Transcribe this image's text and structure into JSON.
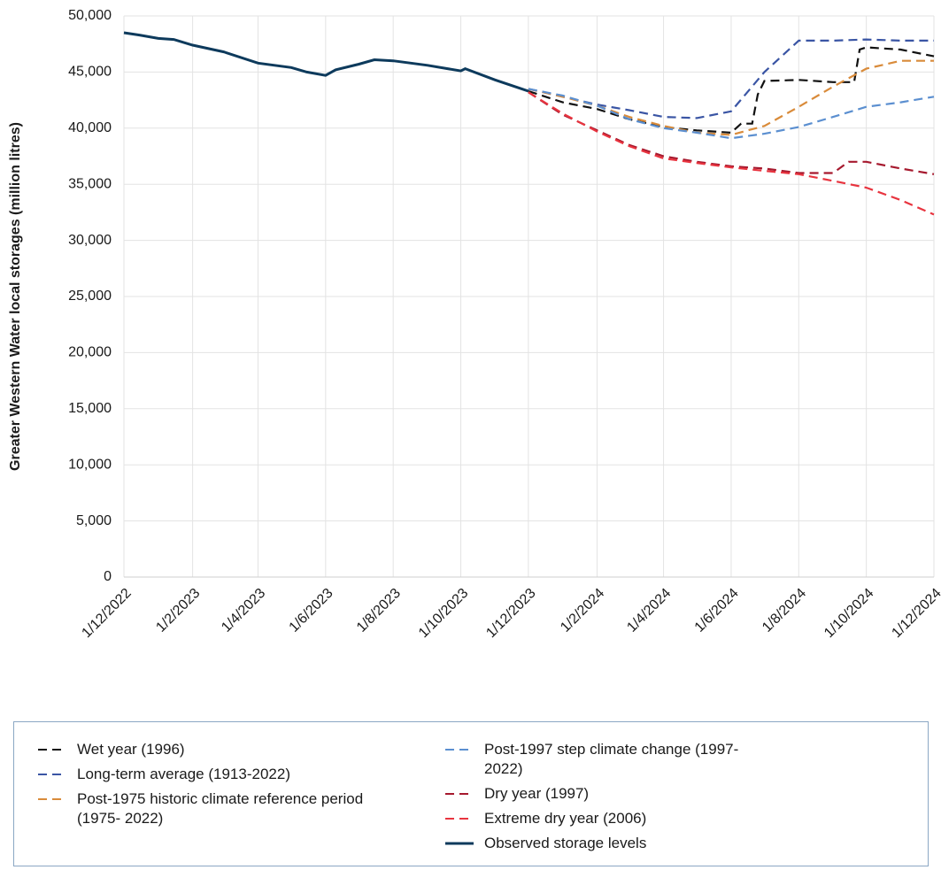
{
  "chart_data": {
    "type": "line",
    "ylabel": "Greater Western Water local storages (million litres)",
    "xlim": [
      "1/12/2022",
      "1/12/2024"
    ],
    "xticks": [
      "1/12/2022",
      "1/2/2023",
      "1/4/2023",
      "1/6/2023",
      "1/8/2023",
      "1/10/2023",
      "1/12/2023",
      "1/2/2024",
      "1/4/2024",
      "1/6/2024",
      "1/8/2024",
      "1/10/2024",
      "1/12/2024"
    ],
    "ylim": [
      0,
      50000
    ],
    "yticks": [
      0,
      {
        "value": 5000,
        "label": "5,000"
      },
      {
        "value": 10000,
        "label": "10,000"
      },
      {
        "value": 15000,
        "label": "15,000"
      },
      {
        "value": 20000,
        "label": "20,000"
      },
      {
        "value": 25000,
        "label": "25,000"
      },
      {
        "value": 30000,
        "label": "30,000"
      },
      {
        "value": 35000,
        "label": "35,000"
      },
      {
        "value": 40000,
        "label": "40,000"
      },
      {
        "value": 45000,
        "label": "45,000"
      },
      {
        "value": 50000,
        "label": "50,000"
      }
    ],
    "grid": true,
    "series": [
      {
        "name": "Wet year (1996)",
        "color": "#111111",
        "dashed": true,
        "x": [
          "1/12/2023",
          "1/1/2024",
          "1/2/2024",
          "1/3/2024",
          "1/4/2024",
          "1/5/2024",
          "1/6/2024",
          "10/6/2024",
          "20/6/2024",
          "25/6/2024",
          "1/7/2024",
          "1/8/2024",
          "1/9/2024",
          "20/9/2024",
          "25/9/2024",
          "1/10/2024",
          "1/11/2024",
          "1/12/2024"
        ],
        "values": [
          43300,
          42300,
          41700,
          40800,
          40100,
          39800,
          39600,
          40400,
          40400,
          43000,
          44200,
          44300,
          44100,
          44100,
          47000,
          47200,
          47000,
          46400
        ]
      },
      {
        "name": "Long-term average (1913-2022)",
        "color": "#3a55a4",
        "dashed": true,
        "x": [
          "1/12/2023",
          "1/1/2024",
          "1/2/2024",
          "1/3/2024",
          "1/4/2024",
          "1/5/2024",
          "1/6/2024",
          "1/7/2024",
          "1/8/2024",
          "1/9/2024",
          "1/10/2024",
          "1/11/2024",
          "1/12/2024"
        ],
        "values": [
          43500,
          42800,
          42100,
          41600,
          41000,
          40900,
          41500,
          45000,
          47800,
          47800,
          47900,
          47800,
          47800
        ]
      },
      {
        "name": "Post-1975 historic climate reference period (1975- 2022)",
        "color": "#d98b3a",
        "dashed": true,
        "x": [
          "1/12/2023",
          "1/1/2024",
          "1/2/2024",
          "1/3/2024",
          "1/4/2024",
          "1/5/2024",
          "1/6/2024",
          "1/7/2024",
          "1/8/2024",
          "1/9/2024",
          "1/10/2024",
          "1/11/2024",
          "1/12/2024"
        ],
        "values": [
          43500,
          42800,
          42000,
          41000,
          40200,
          39600,
          39400,
          40200,
          41900,
          43700,
          45300,
          46000,
          46000
        ]
      },
      {
        "name": "Post-1997 step climate change (1997-2022)",
        "color": "#5b8fd0",
        "dashed": true,
        "x": [
          "1/12/2023",
          "1/1/2024",
          "1/2/2024",
          "1/3/2024",
          "1/4/2024",
          "1/5/2024",
          "1/6/2024",
          "1/7/2024",
          "1/8/2024",
          "1/9/2024",
          "1/10/2024",
          "1/11/2024",
          "1/12/2024"
        ],
        "values": [
          43500,
          42900,
          42000,
          40800,
          40000,
          39600,
          39100,
          39500,
          40100,
          41000,
          41900,
          42300,
          42800
        ]
      },
      {
        "name": "Dry year (1997)",
        "color": "#a6192e",
        "dashed": true,
        "x": [
          "1/12/2023",
          "1/1/2024",
          "1/2/2024",
          "1/3/2024",
          "1/4/2024",
          "1/5/2024",
          "1/6/2024",
          "1/7/2024",
          "1/8/2024",
          "1/9/2024",
          "15/9/2024",
          "1/10/2024",
          "1/11/2024",
          "1/12/2024"
        ],
        "values": [
          43200,
          41200,
          39800,
          38500,
          37500,
          37000,
          36600,
          36400,
          36000,
          36000,
          37000,
          37000,
          36400,
          35900
        ]
      },
      {
        "name": "Extreme dry year (2006)",
        "color": "#e8343f",
        "dashed": true,
        "x": [
          "1/12/2023",
          "1/1/2024",
          "1/2/2024",
          "1/3/2024",
          "1/4/2024",
          "1/5/2024",
          "1/6/2024",
          "1/7/2024",
          "1/8/2024",
          "1/9/2024",
          "1/10/2024",
          "1/11/2024",
          "1/12/2024"
        ],
        "values": [
          43200,
          41300,
          39700,
          38400,
          37300,
          36900,
          36500,
          36200,
          35900,
          35300,
          34700,
          33600,
          32300
        ]
      },
      {
        "name": "Observed storage levels",
        "color": "#0d3a5c",
        "dashed": false,
        "x": [
          "1/12/2022",
          "15/12/2022",
          "1/1/2023",
          "15/1/2023",
          "1/2/2023",
          "1/3/2023",
          "1/4/2023",
          "1/5/2023",
          "15/5/2023",
          "1/6/2023",
          "10/6/2023",
          "1/7/2023",
          "15/7/2023",
          "1/8/2023",
          "1/9/2023",
          "1/10/2023",
          "5/10/2023",
          "1/11/2023",
          "25/11/2023",
          "1/12/2023"
        ],
        "values": [
          48500,
          48300,
          48000,
          47900,
          47400,
          46800,
          45800,
          45400,
          45000,
          44700,
          45200,
          45700,
          46100,
          46000,
          45600,
          45100,
          45300,
          44300,
          43500,
          43300
        ]
      }
    ]
  }
}
